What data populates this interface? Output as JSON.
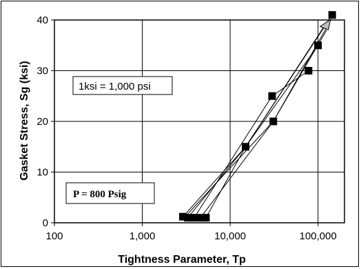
{
  "chart_data": {
    "type": "line",
    "title": "",
    "xlabel": "Tightness Parameter, Tp",
    "ylabel": "Gasket Stress, Sg (ksi)",
    "xscale": "log",
    "xlim": [
      100,
      200000
    ],
    "ylim": [
      0,
      40
    ],
    "x_ticks": [
      100,
      1000,
      10000,
      100000
    ],
    "x_tick_labels": [
      "100",
      "1,000",
      "10,000",
      "100,000"
    ],
    "y_ticks": [
      0,
      10,
      20,
      30,
      40
    ],
    "y_tick_labels": [
      "0",
      "10",
      "20",
      "30",
      "40"
    ],
    "grid": "horizontal",
    "annotations": [
      "1ksi = 1,000 psi",
      "P = 800 Psig"
    ],
    "marker_points": [
      {
        "x": 2900,
        "y": 1.2
      },
      {
        "x": 3300,
        "y": 1.0
      },
      {
        "x": 3900,
        "y": 1.0
      },
      {
        "x": 4600,
        "y": 1.0
      },
      {
        "x": 5300,
        "y": 1.0
      },
      {
        "x": 15000,
        "y": 15
      },
      {
        "x": 30000,
        "y": 25
      },
      {
        "x": 31000,
        "y": 20
      },
      {
        "x": 78000,
        "y": 30
      },
      {
        "x": 100000,
        "y": 35
      },
      {
        "x": 145000,
        "y": 41
      }
    ],
    "series": [
      {
        "x": [
          2900,
          15000,
          100000
        ],
        "y": [
          1.2,
          15,
          35
        ]
      },
      {
        "x": [
          3300,
          15000,
          120000
        ],
        "y": [
          1.0,
          15,
          39
        ]
      },
      {
        "x": [
          3900,
          30000,
          78000
        ],
        "y": [
          1.0,
          25,
          30
        ]
      },
      {
        "x": [
          4600,
          31000,
          125000
        ],
        "y": [
          1.0,
          20,
          38
        ]
      },
      {
        "x": [
          5300,
          15000,
          145000
        ],
        "y": [
          1.0,
          15,
          41
        ]
      },
      {
        "x": [
          3000,
          31000,
          130000
        ],
        "y": [
          1.0,
          20,
          39
        ]
      }
    ],
    "end_marker": {
      "x": 122000,
      "y": 39
    }
  }
}
